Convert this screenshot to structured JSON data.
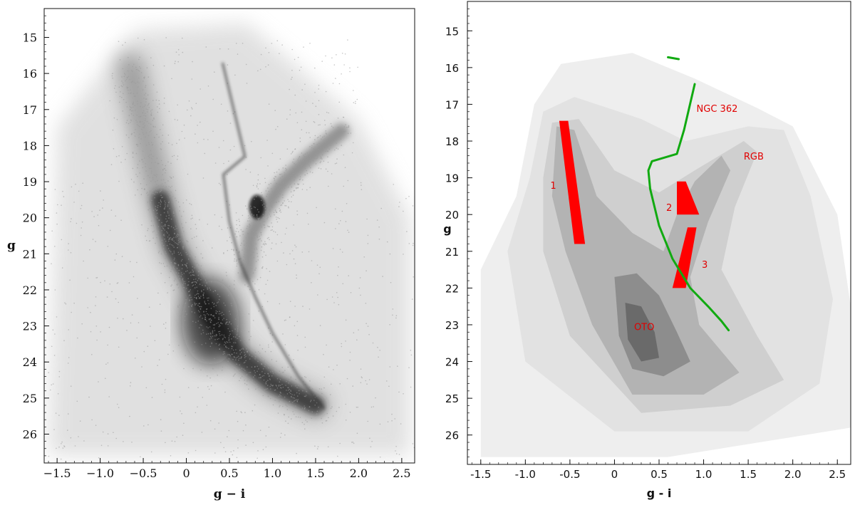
{
  "chart_data": [
    {
      "type": "scatter",
      "title": "",
      "xlabel": "g − i",
      "ylabel": "g",
      "xlim": [
        -1.65,
        2.65
      ],
      "ylim": [
        26.8,
        14.2
      ],
      "y_inverted": true,
      "xticks": [
        -1.5,
        -1.0,
        -0.5,
        0,
        0.5,
        1.0,
        1.5,
        2.0,
        2.5
      ],
      "xtick_labels": [
        "−1.5",
        "−1.0",
        "−0.5",
        "0",
        "0.5",
        "1.0",
        "1.5",
        "2.0",
        "2.5"
      ],
      "yticks": [
        15,
        16,
        17,
        18,
        19,
        20,
        21,
        22,
        23,
        24,
        25,
        26
      ],
      "ytick_labels": [
        "15",
        "16",
        "17",
        "18",
        "19",
        "20",
        "21",
        "22",
        "23",
        "24",
        "25",
        "26"
      ],
      "features": [
        {
          "name": "main sequence",
          "points": [
            [
              -0.65,
              15.8
            ],
            [
              -0.5,
              17.5
            ],
            [
              -0.3,
              19.5
            ],
            [
              -0.15,
              20.8
            ],
            [
              0.1,
              21.9
            ],
            [
              0.3,
              22.8
            ],
            [
              0.6,
              23.8
            ],
            [
              1.0,
              24.6
            ],
            [
              1.5,
              25.2
            ]
          ]
        },
        {
          "name": "red giant branch",
          "points": [
            [
              0.7,
              21.6
            ],
            [
              0.75,
              20.5
            ],
            [
              0.9,
              19.8
            ],
            [
              1.1,
              19.1
            ],
            [
              1.4,
              18.4
            ],
            [
              1.8,
              17.6
            ]
          ]
        },
        {
          "name": "red clump",
          "points": [
            [
              0.82,
              19.7
            ]
          ]
        },
        {
          "name": "NGC 362 sequence",
          "points": [
            [
              0.42,
              15.7
            ],
            [
              0.68,
              18.3
            ],
            [
              0.43,
              18.8
            ],
            [
              0.5,
              20.1
            ],
            [
              0.62,
              21.2
            ],
            [
              0.8,
              22.2
            ],
            [
              1.0,
              23.2
            ],
            [
              1.3,
              24.4
            ],
            [
              1.6,
              25.3
            ]
          ]
        }
      ],
      "grid": false,
      "legend": "none"
    },
    {
      "type": "heatmap",
      "title": "",
      "xlabel": "g - i",
      "ylabel": "g",
      "xlim": [
        -1.65,
        2.65
      ],
      "ylim": [
        26.8,
        14.2
      ],
      "y_inverted": true,
      "xticks": [
        -1.5,
        -1.0,
        -0.5,
        0,
        0.5,
        1.0,
        1.5,
        2.0,
        2.5
      ],
      "xtick_labels": [
        "-1.5",
        "-1.0",
        "-0.5",
        "0",
        "0.5",
        "1.0",
        "1.5",
        "2.0",
        "2.5"
      ],
      "yticks": [
        15,
        16,
        17,
        18,
        19,
        20,
        21,
        22,
        23,
        24,
        25,
        26
      ],
      "ytick_labels": [
        "15",
        "16",
        "17",
        "18",
        "19",
        "20",
        "21",
        "22",
        "23",
        "24",
        "25",
        "26"
      ],
      "isochrone": {
        "name": "NGC 362",
        "color": "#11aa11",
        "x": [
          0.9,
          0.78,
          0.7,
          0.42,
          0.38,
          0.4,
          0.5,
          0.65,
          0.85,
          1.05,
          1.2,
          1.28
        ],
        "y": [
          16.45,
          17.7,
          18.35,
          18.55,
          18.8,
          19.3,
          20.3,
          21.2,
          22.0,
          22.5,
          22.9,
          23.15
        ],
        "hb_x": [
          0.6,
          0.72
        ],
        "hb_y": [
          15.72,
          15.77
        ]
      },
      "selection_boxes": [
        {
          "label": "1",
          "color": "#ff0000",
          "corners": [
            [
              -0.62,
              17.45
            ],
            [
              -0.52,
              17.45
            ],
            [
              -0.33,
              20.8
            ],
            [
              -0.45,
              20.8
            ]
          ]
        },
        {
          "label": "2",
          "color": "#ff0000",
          "corners": [
            [
              0.7,
              19.1
            ],
            [
              0.8,
              19.1
            ],
            [
              0.95,
              20.0
            ],
            [
              0.7,
              20.0
            ]
          ]
        },
        {
          "label": "3",
          "color": "#ff0000",
          "corners": [
            [
              0.82,
              20.35
            ],
            [
              0.92,
              20.35
            ],
            [
              0.8,
              22.0
            ],
            [
              0.65,
              22.0
            ]
          ]
        }
      ],
      "annotations": [
        {
          "text": "NGC 362",
          "x": 0.92,
          "y": 17.2
        },
        {
          "text": "RGB",
          "x": 1.45,
          "y": 18.5
        },
        {
          "text": "1",
          "x": -0.72,
          "y": 19.3
        },
        {
          "text": "2",
          "x": 0.58,
          "y": 19.9
        },
        {
          "text": "3",
          "x": 0.98,
          "y": 21.45
        },
        {
          "text": "OTO",
          "x": 0.22,
          "y": 23.15
        }
      ],
      "contour_levels": 6,
      "grid": false,
      "legend": "none"
    }
  ]
}
